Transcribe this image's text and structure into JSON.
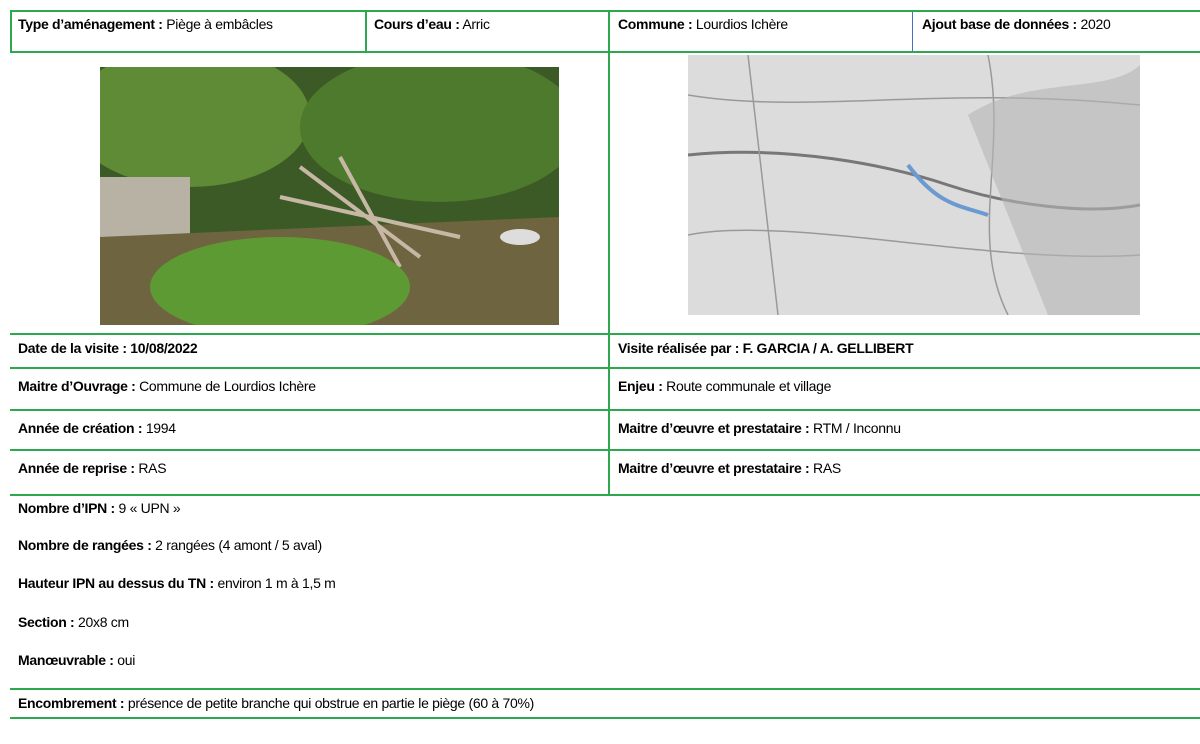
{
  "header": {
    "cells": [
      {
        "label": "Type d’aménagement :",
        "value": "Piège à embâcles"
      },
      {
        "label": "Cours d’eau :",
        "value": "Arric"
      },
      {
        "label": "Commune :",
        "value": "Lourdios Ichère"
      },
      {
        "label": "Ajout base de données :",
        "value": "2020"
      }
    ]
  },
  "table": {
    "rows": [
      [
        {
          "label": "Date de la visite :",
          "value": "10/08/2022"
        },
        {
          "label": "Visite réalisée par :",
          "value": "F. GARCIA / A. GELLIBERT"
        }
      ],
      [
        {
          "label": "Maitre d’Ouvrage :",
          "value": "Commune de Lourdios Ichère"
        },
        {
          "label": "Enjeu :",
          "value": "Route communale et village"
        }
      ],
      [
        {
          "label": "Année de création :",
          "value": "1994"
        },
        {
          "label": "Maitre d’œuvre et prestataire :",
          "value": "RTM / Inconnu"
        }
      ],
      [
        {
          "label": "Année de reprise :",
          "value": "RAS"
        },
        {
          "label": "Maitre d’œuvre et prestataire :",
          "value": "RAS"
        }
      ]
    ]
  },
  "details": [
    {
      "label": "Nombre d’IPN :",
      "value": "9 « UPN »"
    },
    {
      "label": "Nombre de rangées :",
      "value": "2 rangées (4 amont / 5 aval)"
    },
    {
      "label": "Hauteur IPN au dessus du TN :",
      "value": "environ 1 m à 1,5 m"
    },
    {
      "label": "Section :",
      "value": "20x8 cm"
    },
    {
      "label": "Manœuvrable :",
      "value": "oui"
    },
    {
      "label": "Encombrement :",
      "value": "présence de petite branche qui obstrue en partie le piège (60 à 70%)"
    }
  ]
}
